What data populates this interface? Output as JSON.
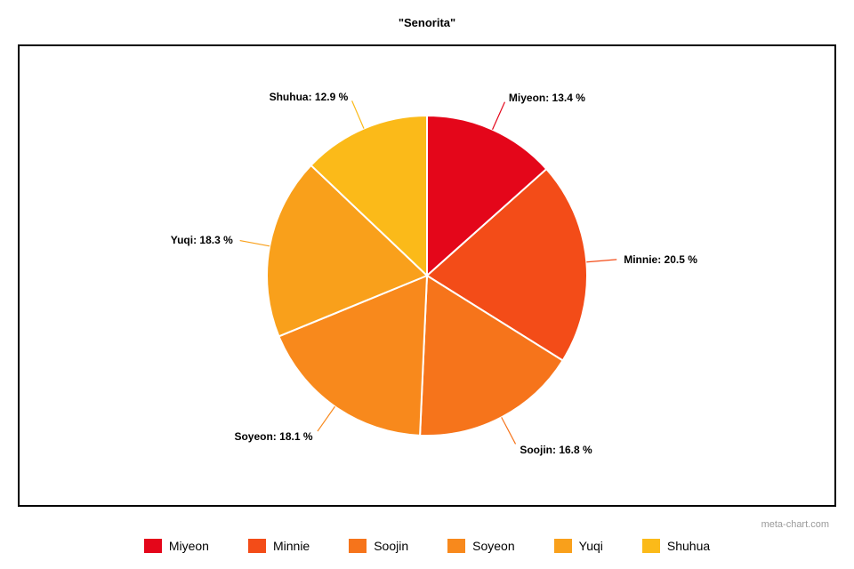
{
  "chart": {
    "type": "pie",
    "title": "\"Senorita\"",
    "title_fontsize": 13,
    "title_fontweight": "bold",
    "background_color": "#ffffff",
    "border_color": "#000000",
    "border_width": 2,
    "radius": 180,
    "slice_gap_color": "#ffffff",
    "slice_gap_width": 2,
    "label_fontsize": 12,
    "label_fontweight": "bold",
    "leader_line_color_matches_slice": true,
    "leader_line_width": 1.2,
    "slices": [
      {
        "name": "Miyeon",
        "value": 13.4,
        "color": "#e4061a",
        "label": "Miyeon: 13.4 %"
      },
      {
        "name": "Minnie",
        "value": 20.5,
        "color": "#f34c18",
        "label": "Minnie: 20.5 %"
      },
      {
        "name": "Soojin",
        "value": 16.8,
        "color": "#f6741b",
        "label": "Soojin: 16.8 %"
      },
      {
        "name": "Soyeon",
        "value": 18.1,
        "color": "#f8891c",
        "label": "Soyeon: 18.1 %"
      },
      {
        "name": "Yuqi",
        "value": 18.3,
        "color": "#f9a01b",
        "label": "Yuqi: 18.3 %"
      },
      {
        "name": "Shuhua",
        "value": 12.9,
        "color": "#fbba19",
        "label": "Shuhua: 12.9 %"
      }
    ]
  },
  "legend": {
    "items": [
      {
        "label": "Miyeon",
        "color": "#e4061a"
      },
      {
        "label": "Minnie",
        "color": "#f34c18"
      },
      {
        "label": "Soojin",
        "color": "#f6741b"
      },
      {
        "label": "Soyeon",
        "color": "#f8891c"
      },
      {
        "label": "Yuqi",
        "color": "#f9a01b"
      },
      {
        "label": "Shuhua",
        "color": "#fbba19"
      }
    ],
    "fontsize": 14,
    "swatch_width": 20,
    "swatch_height": 16
  },
  "attribution": "meta-chart.com"
}
